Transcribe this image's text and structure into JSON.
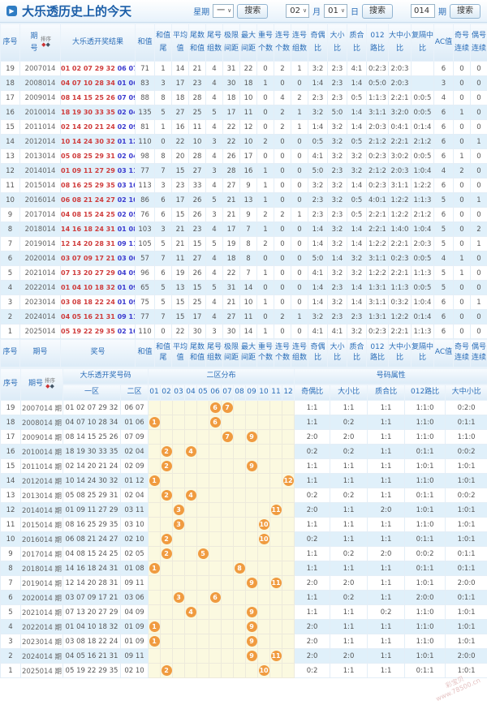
{
  "title": "大乐透历史上的今天",
  "toolbar": {
    "week_label": "星期",
    "week_value": "一",
    "search_label": "搜索",
    "month_value": "02",
    "month_label": "月",
    "day_value": "01",
    "day_label": "日",
    "period_value": "014",
    "period_label": "期"
  },
  "watermark": {
    "line1": "彩宝贝",
    "line2": "www.78500.cn"
  },
  "table1": {
    "header": {
      "seq": "序号",
      "period": "期号",
      "sort": "排序",
      "result": "大乐透开奖结果",
      "footer_result": "奖号",
      "cols": [
        "和值",
        "和值尾",
        "平均值",
        "尾数和值",
        "尾号组数",
        "极限间距",
        "最大间距",
        "重号个数",
        "连号个数",
        "连号组数",
        "奇偶比",
        "大小比",
        "质合比",
        "012路比",
        "大中小比",
        "复隔中比",
        "AC值",
        "奇号连续",
        "偶号连续"
      ]
    },
    "rows": [
      {
        "seq": "19",
        "period": "2007014",
        "front": "01 02 07 29 32",
        "back": "06 07",
        "values": [
          "71",
          "1",
          "14",
          "21",
          "4",
          "31",
          "22",
          "0",
          "2",
          "1",
          "3:2",
          "2:3",
          "4:1",
          "0:2:3",
          "2:0:3",
          "",
          "6",
          "0",
          "0"
        ]
      },
      {
        "seq": "18",
        "period": "2008014",
        "front": "04 07 10 28 34",
        "back": "01 06",
        "values": [
          "83",
          "3",
          "17",
          "23",
          "4",
          "30",
          "18",
          "1",
          "0",
          "0",
          "1:4",
          "2:3",
          "1:4",
          "0:5:0",
          "2:0:3",
          "",
          "3",
          "0",
          "0"
        ]
      },
      {
        "seq": "17",
        "period": "2009014",
        "front": "08 14 15 25 26",
        "back": "07 09",
        "values": [
          "88",
          "8",
          "18",
          "28",
          "4",
          "18",
          "10",
          "0",
          "4",
          "2",
          "2:3",
          "2:3",
          "0:5",
          "1:1:3",
          "2:2:1",
          "0:0:5",
          "4",
          "0",
          "0"
        ]
      },
      {
        "seq": "16",
        "period": "2010014",
        "front": "18 19 30 33 35",
        "back": "02 04",
        "values": [
          "135",
          "5",
          "27",
          "25",
          "5",
          "17",
          "11",
          "0",
          "2",
          "1",
          "3:2",
          "5:0",
          "1:4",
          "3:1:1",
          "3:2:0",
          "0:0:5",
          "6",
          "1",
          "0"
        ]
      },
      {
        "seq": "15",
        "period": "2011014",
        "front": "02 14 20 21 24",
        "back": "02 09",
        "values": [
          "81",
          "1",
          "16",
          "11",
          "4",
          "22",
          "12",
          "0",
          "2",
          "1",
          "1:4",
          "3:2",
          "1:4",
          "2:0:3",
          "0:4:1",
          "0:1:4",
          "6",
          "0",
          "0"
        ]
      },
      {
        "seq": "14",
        "period": "2012014",
        "front": "10 14 24 30 32",
        "back": "01 12",
        "values": [
          "110",
          "0",
          "22",
          "10",
          "3",
          "22",
          "10",
          "2",
          "0",
          "0",
          "0:5",
          "3:2",
          "0:5",
          "2:1:2",
          "2:2:1",
          "2:1:2",
          "6",
          "0",
          "1"
        ]
      },
      {
        "seq": "13",
        "period": "2013014",
        "front": "05 08 25 29 31",
        "back": "02 04",
        "values": [
          "98",
          "8",
          "20",
          "28",
          "4",
          "26",
          "17",
          "0",
          "0",
          "0",
          "4:1",
          "3:2",
          "3:2",
          "0:2:3",
          "3:0:2",
          "0:0:5",
          "6",
          "1",
          "0"
        ]
      },
      {
        "seq": "12",
        "period": "2014014",
        "front": "01 09 11 27 29",
        "back": "03 11",
        "values": [
          "77",
          "7",
          "15",
          "27",
          "3",
          "28",
          "16",
          "1",
          "0",
          "0",
          "5:0",
          "2:3",
          "3:2",
          "2:1:2",
          "2:0:3",
          "1:0:4",
          "4",
          "2",
          "0"
        ]
      },
      {
        "seq": "11",
        "period": "2015014",
        "front": "08 16 25 29 35",
        "back": "03 10",
        "values": [
          "113",
          "3",
          "23",
          "33",
          "4",
          "27",
          "9",
          "1",
          "0",
          "0",
          "3:2",
          "3:2",
          "1:4",
          "0:2:3",
          "3:1:1",
          "1:2:2",
          "6",
          "0",
          "0"
        ]
      },
      {
        "seq": "10",
        "period": "2016014",
        "front": "06 08 21 24 27",
        "back": "02 10",
        "values": [
          "86",
          "6",
          "17",
          "26",
          "5",
          "21",
          "13",
          "1",
          "0",
          "0",
          "2:3",
          "3:2",
          "0:5",
          "4:0:1",
          "1:2:2",
          "1:1:3",
          "5",
          "0",
          "1"
        ]
      },
      {
        "seq": "9",
        "period": "2017014",
        "front": "04 08 15 24 25",
        "back": "02 05",
        "values": [
          "76",
          "6",
          "15",
          "26",
          "3",
          "21",
          "9",
          "2",
          "2",
          "1",
          "2:3",
          "2:3",
          "0:5",
          "2:2:1",
          "1:2:2",
          "2:1:2",
          "6",
          "0",
          "0"
        ]
      },
      {
        "seq": "8",
        "period": "2018014",
        "front": "14 16 18 24 31",
        "back": "01 08",
        "values": [
          "103",
          "3",
          "21",
          "23",
          "4",
          "17",
          "7",
          "1",
          "0",
          "0",
          "1:4",
          "3:2",
          "1:4",
          "2:2:1",
          "1:4:0",
          "1:0:4",
          "5",
          "0",
          "2"
        ]
      },
      {
        "seq": "7",
        "period": "2019014",
        "front": "12 14 20 28 31",
        "back": "09 11",
        "values": [
          "105",
          "5",
          "21",
          "15",
          "5",
          "19",
          "8",
          "2",
          "0",
          "0",
          "1:4",
          "3:2",
          "1:4",
          "1:2:2",
          "2:2:1",
          "2:0:3",
          "5",
          "0",
          "1"
        ]
      },
      {
        "seq": "6",
        "period": "2020014",
        "front": "03 07 09 17 21",
        "back": "03 06",
        "values": [
          "57",
          "7",
          "11",
          "27",
          "4",
          "18",
          "8",
          "0",
          "0",
          "0",
          "5:0",
          "1:4",
          "3:2",
          "3:1:1",
          "0:2:3",
          "0:0:5",
          "4",
          "1",
          "0"
        ]
      },
      {
        "seq": "5",
        "period": "2021014",
        "front": "07 13 20 27 29",
        "back": "04 09",
        "values": [
          "96",
          "6",
          "19",
          "26",
          "4",
          "22",
          "7",
          "1",
          "0",
          "0",
          "4:1",
          "3:2",
          "3:2",
          "1:2:2",
          "2:2:1",
          "1:1:3",
          "5",
          "1",
          "0"
        ]
      },
      {
        "seq": "4",
        "period": "2022014",
        "front": "01 04 10 18 32",
        "back": "01 09",
        "values": [
          "65",
          "5",
          "13",
          "15",
          "5",
          "31",
          "14",
          "0",
          "0",
          "0",
          "1:4",
          "2:3",
          "1:4",
          "1:3:1",
          "1:1:3",
          "0:0:5",
          "5",
          "0",
          "0"
        ]
      },
      {
        "seq": "3",
        "period": "2023014",
        "front": "03 08 18 22 24",
        "back": "01 09",
        "values": [
          "75",
          "5",
          "15",
          "25",
          "4",
          "21",
          "10",
          "1",
          "0",
          "0",
          "1:4",
          "3:2",
          "1:4",
          "3:1:1",
          "0:3:2",
          "1:0:4",
          "6",
          "0",
          "1"
        ]
      },
      {
        "seq": "2",
        "period": "2024014",
        "front": "04 05 16 21 31",
        "back": "09 11",
        "values": [
          "77",
          "7",
          "15",
          "17",
          "4",
          "27",
          "11",
          "0",
          "2",
          "1",
          "3:2",
          "2:3",
          "2:3",
          "1:3:1",
          "1:2:2",
          "0:1:4",
          "6",
          "0",
          "0"
        ]
      },
      {
        "seq": "1",
        "period": "2025014",
        "front": "05 19 22 29 35",
        "back": "02 10",
        "values": [
          "110",
          "0",
          "22",
          "30",
          "3",
          "30",
          "14",
          "1",
          "0",
          "0",
          "4:1",
          "4:1",
          "3:2",
          "0:2:3",
          "2:2:1",
          "1:1:3",
          "6",
          "0",
          "0"
        ]
      }
    ]
  },
  "table2": {
    "header": {
      "seq": "序号",
      "period": "期号",
      "sort": "排序",
      "result_group": "大乐透开奖号码",
      "zone1": "一区",
      "zone2": "二区",
      "dist_group": "二区分布",
      "dist_cols": [
        "01",
        "02",
        "03",
        "04",
        "05",
        "06",
        "07",
        "08",
        "09",
        "10",
        "11",
        "12"
      ],
      "attr_group": "号码属性",
      "attr_cols": [
        "奇偶比",
        "大小比",
        "质合比",
        "012路比",
        "大中小比"
      ]
    },
    "rows": [
      {
        "seq": "19",
        "period": "2007014 期",
        "front": "01 02 07 29 32",
        "back": "06 07",
        "balls": [
          6,
          7
        ],
        "attrs": [
          "1:1",
          "1:1",
          "1:1",
          "1:1:0",
          "0:2:0"
        ]
      },
      {
        "seq": "18",
        "period": "2008014 期",
        "front": "04 07 10 28 34",
        "back": "01 06",
        "balls": [
          1,
          6
        ],
        "attrs": [
          "1:1",
          "0:2",
          "1:1",
          "1:1:0",
          "0:1:1"
        ]
      },
      {
        "seq": "17",
        "period": "2009014 期",
        "front": "08 14 15 25 26",
        "back": "07 09",
        "balls": [
          7,
          9
        ],
        "attrs": [
          "2:0",
          "2:0",
          "1:1",
          "1:1:0",
          "1:1:0"
        ]
      },
      {
        "seq": "16",
        "period": "2010014 期",
        "front": "18 19 30 33 35",
        "back": "02 04",
        "balls": [
          2,
          4
        ],
        "attrs": [
          "0:2",
          "0:2",
          "1:1",
          "0:1:1",
          "0:0:2"
        ]
      },
      {
        "seq": "15",
        "period": "2011014 期",
        "front": "02 14 20 21 24",
        "back": "02 09",
        "balls": [
          2,
          9
        ],
        "attrs": [
          "1:1",
          "1:1",
          "1:1",
          "1:0:1",
          "1:0:1"
        ]
      },
      {
        "seq": "14",
        "period": "2012014 期",
        "front": "10 14 24 30 32",
        "back": "01 12",
        "balls": [
          1,
          12
        ],
        "attrs": [
          "1:1",
          "1:1",
          "1:1",
          "1:1:0",
          "1:0:1"
        ]
      },
      {
        "seq": "13",
        "period": "2013014 期",
        "front": "05 08 25 29 31",
        "back": "02 04",
        "balls": [
          2,
          4
        ],
        "attrs": [
          "0:2",
          "0:2",
          "1:1",
          "0:1:1",
          "0:0:2"
        ]
      },
      {
        "seq": "12",
        "period": "2014014 期",
        "front": "01 09 11 27 29",
        "back": "03 11",
        "balls": [
          3,
          11
        ],
        "attrs": [
          "2:0",
          "1:1",
          "2:0",
          "1:0:1",
          "1:0:1"
        ]
      },
      {
        "seq": "11",
        "period": "2015014 期",
        "front": "08 16 25 29 35",
        "back": "03 10",
        "balls": [
          3,
          10
        ],
        "attrs": [
          "1:1",
          "1:1",
          "1:1",
          "1:1:0",
          "1:0:1"
        ]
      },
      {
        "seq": "10",
        "period": "2016014 期",
        "front": "06 08 21 24 27",
        "back": "02 10",
        "balls": [
          2,
          10
        ],
        "attrs": [
          "0:2",
          "1:1",
          "1:1",
          "0:1:1",
          "1:0:1"
        ]
      },
      {
        "seq": "9",
        "period": "2017014 期",
        "front": "04 08 15 24 25",
        "back": "02 05",
        "balls": [
          2,
          5
        ],
        "attrs": [
          "1:1",
          "0:2",
          "2:0",
          "0:0:2",
          "0:1:1"
        ]
      },
      {
        "seq": "8",
        "period": "2018014 期",
        "front": "14 16 18 24 31",
        "back": "01 08",
        "balls": [
          1,
          8
        ],
        "attrs": [
          "1:1",
          "1:1",
          "1:1",
          "0:1:1",
          "0:1:1"
        ]
      },
      {
        "seq": "7",
        "period": "2019014 期",
        "front": "12 14 20 28 31",
        "back": "09 11",
        "balls": [
          9,
          11
        ],
        "attrs": [
          "2:0",
          "2:0",
          "1:1",
          "1:0:1",
          "2:0:0"
        ]
      },
      {
        "seq": "6",
        "period": "2020014 期",
        "front": "03 07 09 17 21",
        "back": "03 06",
        "balls": [
          3,
          6
        ],
        "attrs": [
          "1:1",
          "0:2",
          "1:1",
          "2:0:0",
          "0:1:1"
        ]
      },
      {
        "seq": "5",
        "period": "2021014 期",
        "front": "07 13 20 27 29",
        "back": "04 09",
        "balls": [
          4,
          9
        ],
        "attrs": [
          "1:1",
          "1:1",
          "0:2",
          "1:1:0",
          "1:0:1"
        ]
      },
      {
        "seq": "4",
        "period": "2022014 期",
        "front": "01 04 10 18 32",
        "back": "01 09",
        "balls": [
          1,
          9
        ],
        "attrs": [
          "2:0",
          "1:1",
          "1:1",
          "1:1:0",
          "1:0:1"
        ]
      },
      {
        "seq": "3",
        "period": "2023014 期",
        "front": "03 08 18 22 24",
        "back": "01 09",
        "balls": [
          1,
          9
        ],
        "attrs": [
          "2:0",
          "1:1",
          "1:1",
          "1:1:0",
          "1:0:1"
        ]
      },
      {
        "seq": "2",
        "period": "2024014 期",
        "front": "04 05 16 21 31",
        "back": "09 11",
        "balls": [
          9,
          11
        ],
        "attrs": [
          "2:0",
          "2:0",
          "1:1",
          "1:0:1",
          "2:0:0"
        ]
      },
      {
        "seq": "1",
        "period": "2025014 期",
        "front": "05 19 22 29 35",
        "back": "02 10",
        "balls": [
          2,
          10
        ],
        "attrs": [
          "0:2",
          "1:1",
          "1:1",
          "0:1:1",
          "1:0:1"
        ]
      }
    ]
  }
}
